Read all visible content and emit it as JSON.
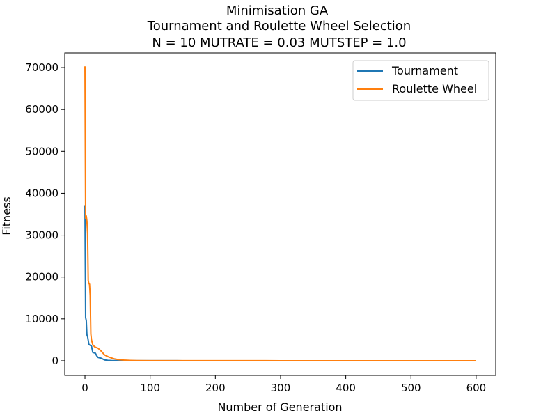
{
  "chart_data": {
    "type": "line",
    "title_lines": [
      "Minimisation GA",
      "Tournament and Roulette Wheel Selection",
      "N = 10 MUTRATE = 0.03 MUTSTEP = 1.0"
    ],
    "xlabel": "Number of Generation",
    "ylabel": "Fitness",
    "xlim": [
      -31,
      630
    ],
    "ylim": [
      -3500,
      73500
    ],
    "xticks": [
      0,
      100,
      200,
      300,
      400,
      500,
      600
    ],
    "yticks": [
      0,
      10000,
      20000,
      30000,
      40000,
      50000,
      60000,
      70000
    ],
    "grid": false,
    "legend_position": "top-right",
    "series": [
      {
        "name": "Tournament",
        "color": "#1f77b4",
        "x": [
          0,
          1,
          2,
          3,
          4,
          5,
          6,
          7,
          8,
          9,
          10,
          12,
          14,
          16,
          18,
          20,
          25,
          30,
          35,
          40,
          50,
          60,
          80,
          100,
          150,
          200,
          300,
          400,
          500,
          600
        ],
        "y": [
          37000,
          10300,
          9600,
          6200,
          5800,
          4900,
          3900,
          3800,
          3700,
          3600,
          3500,
          2000,
          1900,
          1800,
          1200,
          800,
          600,
          200,
          100,
          60,
          30,
          15,
          8,
          5,
          3,
          2,
          1,
          1,
          1,
          1
        ]
      },
      {
        "name": "Roulette Wheel",
        "color": "#ff7f0e",
        "x": [
          0,
          1,
          2,
          3,
          4,
          5,
          6,
          7,
          8,
          9,
          10,
          12,
          15,
          20,
          25,
          30,
          35,
          40,
          45,
          50,
          60,
          70,
          80,
          100,
          150,
          200,
          300,
          400,
          500,
          600
        ],
        "y": [
          70300,
          34000,
          34600,
          33400,
          30500,
          19200,
          18400,
          18300,
          15600,
          6400,
          5000,
          3800,
          3300,
          3000,
          2300,
          1400,
          1000,
          700,
          450,
          300,
          150,
          80,
          40,
          20,
          10,
          6,
          3,
          2,
          2,
          2
        ]
      }
    ]
  }
}
